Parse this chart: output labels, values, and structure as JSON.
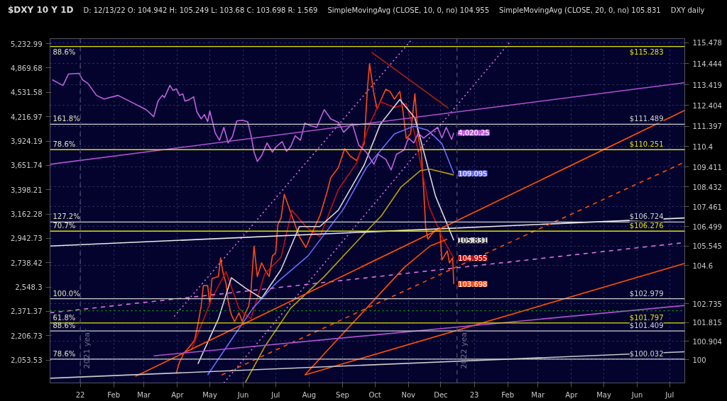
{
  "chart_data": {
    "type": "line",
    "title": "$DXY 10 Y 1D",
    "subtitle": "D: 12/13/22 O: 104.942 H: 105.249 L: 103.68 C: 103.698 R: 1.569",
    "xlim": [
      "2021-12-04",
      "2023-07-15"
    ],
    "xticks": [
      {
        "value": "2022-01-01",
        "label": "22"
      },
      {
        "value": "2022-02-01",
        "label": "Feb"
      },
      {
        "value": "2022-03-01",
        "label": "Mar"
      },
      {
        "value": "2022-04-01",
        "label": "Apr"
      },
      {
        "value": "2022-05-01",
        "label": "May"
      },
      {
        "value": "2022-06-01",
        "label": "Jun"
      },
      {
        "value": "2022-07-01",
        "label": "Jul"
      },
      {
        "value": "2022-08-01",
        "label": "Aug"
      },
      {
        "value": "2022-09-01",
        "label": "Sep"
      },
      {
        "value": "2022-10-01",
        "label": "Oct"
      },
      {
        "value": "2022-11-01",
        "label": "Nov"
      },
      {
        "value": "2022-12-01",
        "label": "Dec"
      },
      {
        "value": "2023-01-01",
        "label": "23"
      },
      {
        "value": "2023-02-01",
        "label": "Feb"
      },
      {
        "value": "2023-03-01",
        "label": "Mar"
      },
      {
        "value": "2023-04-01",
        "label": "Apr"
      },
      {
        "value": "2023-05-01",
        "label": "May"
      },
      {
        "value": "2023-06-01",
        "label": "Jun"
      },
      {
        "value": "2023-07-01",
        "label": "Jul"
      }
    ],
    "ylim": [
      98.87,
      115.67
    ],
    "yticks": [
      100,
      100.904,
      101.815,
      102.735,
      104.6,
      105.545,
      106.499,
      107.461,
      108.432,
      109.411,
      110.4,
      111.397,
      112.404,
      113.419,
      114.444,
      115.478
    ],
    "y2lim": [
      1919,
      5312
    ],
    "y2ticks": [
      {
        "value": 2053.53,
        "label": "2,053.53"
      },
      {
        "value": 2206.73,
        "label": "2,206.73"
      },
      {
        "value": 2371.37,
        "label": "2,371.37"
      },
      {
        "value": 2548.3,
        "label": "2,548.3"
      },
      {
        "value": 2738.42,
        "label": "2,738.42"
      },
      {
        "value": 2942.73,
        "label": "2,942.73"
      },
      {
        "value": 3162.28,
        "label": "3,162.28"
      },
      {
        "value": 3398.21,
        "label": "3,398.21"
      },
      {
        "value": 3651.74,
        "label": "3,651.74"
      },
      {
        "value": 3924.19,
        "label": "3,924.19"
      },
      {
        "value": 4216.97,
        "label": "4,216.97"
      },
      {
        "value": 4531.58,
        "label": "4,531.58"
      },
      {
        "value": 4869.68,
        "label": "4,869.68"
      },
      {
        "value": 5232.99,
        "label": "5,232.99"
      }
    ],
    "log": "y2",
    "grid": true,
    "series": [
      {
        "color": "#ff4a10",
        "x": [
          "2022-03-31",
          "2022-04-03",
          "2022-04-07",
          "2022-04-14",
          "2022-04-17",
          "2022-04-20",
          "2022-04-23",
          "2022-04-25",
          "2022-04-29",
          "2022-05-01",
          "2022-05-03",
          "2022-05-09",
          "2022-05-11",
          "2022-05-13",
          "2022-05-16",
          "2022-05-18",
          "2022-05-21",
          "2022-05-24",
          "2022-05-28",
          "2022-05-31",
          "2022-06-03",
          "2022-06-06",
          "2022-06-08",
          "2022-06-11",
          "2022-06-14",
          "2022-06-18",
          "2022-06-21",
          "2022-06-25",
          "2022-06-28",
          "2022-07-01",
          "2022-07-03",
          "2022-07-06",
          "2022-07-09",
          "2022-07-16",
          "2022-07-23",
          "2022-07-29",
          "2022-08-05",
          "2022-08-11",
          "2022-08-18",
          "2022-08-21",
          "2022-08-28",
          "2022-09-03",
          "2022-09-08",
          "2022-09-14",
          "2022-09-21",
          "2022-09-24",
          "2022-09-26",
          "2022-09-30",
          "2022-10-03",
          "2022-10-06",
          "2022-10-11",
          "2022-10-15",
          "2022-10-19",
          "2022-10-24",
          "2022-10-27",
          "2022-10-30",
          "2022-11-03",
          "2022-11-07",
          "2022-11-10",
          "2022-11-13",
          "2022-11-15",
          "2022-11-17",
          "2022-11-19",
          "2022-11-26",
          "2022-11-30",
          "2022-12-02",
          "2022-12-07",
          "2022-12-09",
          "2022-12-12",
          "2022-12-13"
        ],
        "values": [
          99.36,
          99.9,
          100.32,
          100.75,
          100.98,
          101.73,
          102.62,
          103.62,
          103.62,
          102.72,
          103.96,
          104.06,
          104.97,
          104.3,
          103.72,
          102.85,
          102.19,
          101.86,
          102.29,
          101.86,
          102.29,
          102.62,
          103.29,
          105.55,
          104.06,
          104.73,
          104.4,
          104.06,
          105.07,
          105.21,
          106.58,
          106.92,
          108.07,
          107.03,
          106.0,
          105.48,
          106.34,
          107.03,
          108.25,
          108.88,
          109.37,
          110.3,
          109.94,
          109.72,
          110.55,
          113.2,
          114.45,
          112.98,
          112.24,
          112.61,
          113.2,
          113.09,
          112.72,
          113.09,
          112.1,
          110.8,
          111.02,
          112.98,
          110.91,
          110.08,
          108.42,
          106.45,
          105.89,
          106.34,
          106.45,
          104.87,
          105.31,
          104.73,
          104.97,
          103.698
        ],
        "value_labels": [
          null,
          null,
          null,
          null,
          null,
          null,
          null,
          null,
          null,
          null,
          null,
          null,
          null,
          null,
          null,
          null,
          null,
          null,
          null,
          null,
          null,
          null,
          null,
          null,
          null,
          null,
          null,
          null,
          null,
          null,
          null,
          null,
          null,
          null,
          null,
          null,
          null,
          null,
          null,
          null,
          null,
          null,
          null,
          null,
          null,
          null,
          null,
          null,
          null,
          null,
          null,
          null,
          null,
          null,
          null,
          null,
          null,
          null,
          null,
          null,
          null,
          null,
          null,
          null,
          null,
          null,
          null,
          null,
          null,
          "103.698"
        ]
      },
      {
        "color": "#c01010",
        "x": [
          "2022-04-14",
          "2022-05-03",
          "2022-05-16",
          "2022-05-28",
          "2022-06-08",
          "2022-06-21",
          "2022-07-06",
          "2022-07-16",
          "2022-07-29",
          "2022-08-11",
          "2022-08-28",
          "2022-09-14",
          "2022-09-26",
          "2022-10-06",
          "2022-10-19",
          "2022-10-30",
          "2022-11-07",
          "2022-11-20",
          "2022-12-02",
          "2022-12-13"
        ],
        "values": [
          100.5,
          103.0,
          104.3,
          102.5,
          102.0,
          104.2,
          105.0,
          107.3,
          106.5,
          106.0,
          108.3,
          109.6,
          111.5,
          112.6,
          112.3,
          112.5,
          111.0,
          107.5,
          106.0,
          104.955
        ],
        "value_labels": [
          null,
          null,
          null,
          null,
          null,
          null,
          null,
          null,
          null,
          null,
          null,
          null,
          null,
          null,
          null,
          null,
          null,
          null,
          null,
          "104.955"
        ]
      },
      {
        "color": "#d8d8d8",
        "x": [
          "2022-04-20",
          "2022-05-09",
          "2022-05-21",
          "2022-06-03",
          "2022-06-18",
          "2022-07-06",
          "2022-07-23",
          "2022-08-11",
          "2022-08-28",
          "2022-09-21",
          "2022-10-06",
          "2022-10-24",
          "2022-11-07",
          "2022-11-26",
          "2022-12-13"
        ],
        "values": [
          99.8,
          102.0,
          104.0,
          103.5,
          103.0,
          104.4,
          106.5,
          106.5,
          107.3,
          109.5,
          111.5,
          112.7,
          111.8,
          108.0,
          105.831
        ],
        "value_labels": [
          null,
          null,
          null,
          null,
          null,
          null,
          null,
          null,
          null,
          null,
          null,
          null,
          null,
          null,
          "105.831"
        ]
      },
      {
        "color": "#6a6aff",
        "x": [
          "2022-04-29",
          "2022-05-21",
          "2022-06-10",
          "2022-07-01",
          "2022-07-31",
          "2022-09-02",
          "2022-09-23",
          "2022-10-19",
          "2022-11-06",
          "2022-11-19",
          "2022-12-02",
          "2022-12-13"
        ],
        "values": [
          99.26,
          100.98,
          102.52,
          103.72,
          105.07,
          107.37,
          109.37,
          111.02,
          111.39,
          111.2,
          110.55,
          109.095
        ],
        "value_labels": [
          null,
          null,
          null,
          null,
          null,
          null,
          null,
          null,
          null,
          null,
          null,
          "109.095"
        ]
      },
      {
        "color": "#b8a000",
        "x": [
          "2022-06-03",
          "2022-06-21",
          "2022-07-15",
          "2022-08-15",
          "2022-09-14",
          "2022-10-07",
          "2022-10-25",
          "2022-11-12",
          "2022-11-21",
          "2022-12-13"
        ],
        "values": [
          98.9,
          100.65,
          102.52,
          104.06,
          105.76,
          107.03,
          108.42,
          109.23,
          109.3,
          109.02
        ]
      },
      {
        "color": "#c060e0",
        "axis": "y2",
        "x": [
          "2021-12-06",
          "2021-12-11",
          "2021-12-16",
          "2021-12-21",
          "2021-12-31",
          "2022-01-03",
          "2022-01-08",
          "2022-01-16",
          "2022-01-23",
          "2022-02-05",
          "2022-02-18",
          "2022-03-03",
          "2022-03-10",
          "2022-03-14",
          "2022-03-18",
          "2022-03-20",
          "2022-03-25",
          "2022-03-28",
          "2022-03-31",
          "2022-04-03",
          "2022-04-06",
          "2022-04-08",
          "2022-04-12",
          "2022-04-16",
          "2022-04-19",
          "2022-04-23",
          "2022-04-26",
          "2022-04-29",
          "2022-05-01",
          "2022-05-06",
          "2022-05-10",
          "2022-05-14",
          "2022-05-18",
          "2022-05-22",
          "2022-05-26",
          "2022-05-31",
          "2022-06-05",
          "2022-06-08",
          "2022-06-11",
          "2022-06-14",
          "2022-06-18",
          "2022-06-23",
          "2022-06-28",
          "2022-07-01",
          "2022-07-07",
          "2022-07-11",
          "2022-07-15",
          "2022-07-19",
          "2022-07-24",
          "2022-07-28",
          "2022-08-01",
          "2022-08-08",
          "2022-08-15",
          "2022-08-21",
          "2022-08-28",
          "2022-09-02",
          "2022-09-10",
          "2022-09-16",
          "2022-09-23",
          "2022-09-30",
          "2022-10-04",
          "2022-10-11",
          "2022-10-16",
          "2022-10-21",
          "2022-10-28",
          "2022-11-01",
          "2022-11-06",
          "2022-11-10",
          "2022-11-15",
          "2022-11-21",
          "2022-11-28",
          "2022-12-02",
          "2022-12-06",
          "2022-12-11",
          "2022-12-13"
        ],
        "values": [
          4704,
          4664,
          4625,
          4783,
          4793,
          4704,
          4654,
          4491,
          4444,
          4491,
          4398,
          4306,
          4217,
          4416,
          4491,
          4463,
          4625,
          4558,
          4577,
          4491,
          4510,
          4416,
          4435,
          4472,
          4279,
          4190,
          4244,
          4155,
          4288,
          4018,
          3934,
          4086,
          3902,
          3976,
          4164,
          4173,
          4155,
          4002,
          3797,
          3695,
          3757,
          3902,
          3797,
          3853,
          3918,
          3805,
          3861,
          3985,
          3934,
          4138,
          4112,
          4086,
          4306,
          4190,
          4147,
          4027,
          4129,
          3877,
          3797,
          3663,
          3773,
          3718,
          3603,
          3773,
          3821,
          3959,
          3902,
          4018,
          3959,
          4018,
          4086,
          3959,
          4086,
          3943,
          4020.25
        ],
        "value_labels": [
          null,
          null,
          null,
          null,
          null,
          null,
          null,
          null,
          null,
          null,
          null,
          null,
          null,
          null,
          null,
          null,
          null,
          null,
          null,
          null,
          null,
          null,
          null,
          null,
          null,
          null,
          null,
          null,
          null,
          null,
          null,
          null,
          null,
          null,
          null,
          null,
          null,
          null,
          null,
          null,
          null,
          null,
          null,
          null,
          null,
          null,
          null,
          null,
          null,
          null,
          null,
          null,
          null,
          null,
          null,
          null,
          null,
          null,
          null,
          null,
          null,
          null,
          null,
          null,
          null,
          null,
          null,
          null,
          null,
          null,
          null,
          null,
          null,
          null,
          "4,020.25"
        ]
      },
      {
        "color": "#e070e0",
        "line_style": "dotted",
        "x": [
          "2022-03-29",
          "2022-11-03"
        ],
        "values": [
          102.12,
          115.56
        ]
      },
      {
        "color": "#e070e0",
        "line_style": "dotted",
        "x": [
          "2022-05-14",
          "2023-02-04"
        ],
        "values": [
          98.87,
          115.56
        ]
      },
      {
        "color": "#e070e0",
        "line_style": "dashed",
        "x": [
          "2021-12-04",
          "2023-07-15"
        ],
        "values": [
          102.29,
          105.72
        ]
      },
      {
        "color": "#e8e8e8",
        "x": [
          "2021-12-04",
          "2023-07-15"
        ],
        "values": [
          105.55,
          106.92
        ]
      },
      {
        "color": "#ff5000",
        "x": [
          "2022-02-21",
          "2023-07-15"
        ],
        "values": [
          99.19,
          112.17
        ]
      },
      {
        "color": "#ff5000",
        "x": [
          "2022-07-28",
          "2022-08-29",
          "2022-09-28",
          "2022-10-28",
          "2022-11-21",
          "2022-12-07"
        ],
        "values": [
          99.26,
          101.09,
          102.79,
          104.5,
          105.55,
          105.89
        ]
      },
      {
        "color": "#ff5000",
        "line_style": "dashed",
        "x": [
          "2022-05-12",
          "2023-07-15"
        ],
        "values": [
          99.26,
          109.65
        ]
      },
      {
        "color": "#ff5000",
        "x": [
          "2022-07-28",
          "2023-07-15"
        ],
        "values": [
          99.26,
          104.7
        ]
      },
      {
        "color": "#b02010",
        "x": [
          "2022-09-28",
          "2022-12-08"
        ],
        "values": [
          115.0,
          112.28
        ]
      },
      {
        "color": "#b050d0",
        "x": [
          "2021-12-04",
          "2023-07-15"
        ],
        "values": [
          109.54,
          113.52
        ]
      },
      {
        "color": "#b050d0",
        "x": [
          "2022-03-10",
          "2023-07-15"
        ],
        "values": [
          100.19,
          102.65
        ]
      },
      {
        "color": "#c8c8c8",
        "x": [
          "2021-12-04",
          "2023-07-15"
        ],
        "values": [
          99.1,
          100.39
        ]
      }
    ],
    "ref_lines": [
      {
        "axis": "y",
        "value": 115.283,
        "label": "$115.283",
        "color": "#e0e000"
      },
      {
        "axis": "y",
        "value": 111.489,
        "label": "$111.489",
        "color": "#d0d0d0"
      },
      {
        "axis": "y",
        "value": 110.251,
        "label": "$110.251",
        "color": "#e0e000"
      },
      {
        "axis": "y",
        "value": 106.724,
        "label": "$106.724",
        "color": "#d0d0d0"
      },
      {
        "axis": "y",
        "value": 106.276,
        "label": "$106.276",
        "color": "#e0e000"
      },
      {
        "axis": "y",
        "value": 102.979,
        "label": "$102.979",
        "color": "#d0d0d0"
      },
      {
        "axis": "y",
        "value": 102.39,
        "color": "#00b000",
        "line_style": "dotted"
      },
      {
        "axis": "y",
        "value": 101.797,
        "label": "$101.797",
        "color": "#e0e000"
      },
      {
        "axis": "y",
        "value": 101.409,
        "label": "$101.409",
        "color": "#d0d0d0"
      },
      {
        "axis": "y",
        "value": 100.032,
        "label": "$100.032",
        "color": "#d0d0d0"
      },
      {
        "axis": "x",
        "value": "2022-01-01",
        "label": "2021 year",
        "color": "#505070",
        "line_style": "dashed"
      },
      {
        "axis": "x",
        "value": "2022-12-16",
        "label": "2022 year",
        "color": "#505070",
        "line_style": "dashed"
      }
    ],
    "annotations": [
      "SimpleMovingAvg (CLOSE, 10, 0, no) 104.955",
      "SimpleMovingAvg (CLOSE, 20, 0, no) 105.831",
      "DXY daily",
      {
        "text": "88.6%",
        "x": "2021-12-04",
        "y": 115.283
      },
      {
        "text": "161.8%",
        "x": "2021-12-04",
        "y": 111.489
      },
      {
        "text": "78.6%",
        "x": "2021-12-04",
        "y": 110.251
      },
      {
        "text": "127.2%",
        "x": "2021-12-04",
        "y": 106.724
      },
      {
        "text": "70.7%",
        "x": "2021-12-04",
        "y": 106.276
      },
      {
        "text": "100.0%",
        "x": "2021-12-04",
        "y": 102.979
      },
      {
        "text": "61.8%",
        "x": "2021-12-04",
        "y": 101.797
      },
      {
        "text": "88.6%",
        "x": "2021-12-04",
        "y": 101.409
      },
      {
        "text": "78.6%",
        "x": "2021-12-04",
        "y": 100.032
      }
    ]
  }
}
